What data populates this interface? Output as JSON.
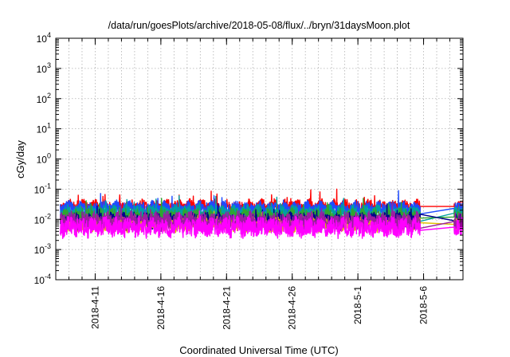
{
  "chart_data": {
    "type": "line",
    "title": "/data/run/goesPlots/archive/2018-05-08/flux/../bryn/31daysMoon.plot",
    "xlabel": "Coordinated Universal Time (UTC)",
    "ylabel": "cGy/day",
    "yscale": "log",
    "ylim": [
      0.0001,
      10000
    ],
    "y_ticks": [
      {
        "value": 0.0001,
        "base": "10",
        "exp": "-4"
      },
      {
        "value": 0.001,
        "base": "10",
        "exp": "-3"
      },
      {
        "value": 0.01,
        "base": "10",
        "exp": "-2"
      },
      {
        "value": 0.1,
        "base": "10",
        "exp": "-1"
      },
      {
        "value": 1,
        "base": "10",
        "exp": "0"
      },
      {
        "value": 10,
        "base": "10",
        "exp": "1"
      },
      {
        "value": 100,
        "base": "10",
        "exp": "2"
      },
      {
        "value": 1000,
        "base": "10",
        "exp": "3"
      },
      {
        "value": 10000,
        "base": "10",
        "exp": "4"
      }
    ],
    "xlim": [
      "2018-04-08",
      "2018-05-09"
    ],
    "x_ticks": [
      "2018-4-11",
      "2018-4-16",
      "2018-4-21",
      "2018-4-26",
      "2018-5-1",
      "2018-5-6"
    ],
    "grid": true,
    "legend": "none",
    "series": [
      {
        "color": "#ff0000",
        "baseline": 0.027,
        "spread": 0.18,
        "spike": 0.6
      },
      {
        "color": "#1e4bff",
        "baseline": 0.023,
        "spread": 0.2,
        "spike": 0.55
      },
      {
        "color": "#00a0a0",
        "baseline": 0.016,
        "spread": 0.22,
        "spike": 0.5
      },
      {
        "color": "#2ea52e",
        "baseline": 0.012,
        "spread": 0.22,
        "spike": 0.45
      },
      {
        "color": "#00008b",
        "baseline": 0.009,
        "spread": 0.22,
        "spike": 0.4
      },
      {
        "color": "#e0c000",
        "baseline": 0.0068,
        "spread": 0.2,
        "spike": 0.35
      },
      {
        "color": "#9b1fa0",
        "baseline": 0.0085,
        "spread": 0.28,
        "spike": 0.35
      },
      {
        "color": "#ff00ff",
        "baseline": 0.0055,
        "spread": 0.3,
        "spike": 0.3
      }
    ]
  }
}
